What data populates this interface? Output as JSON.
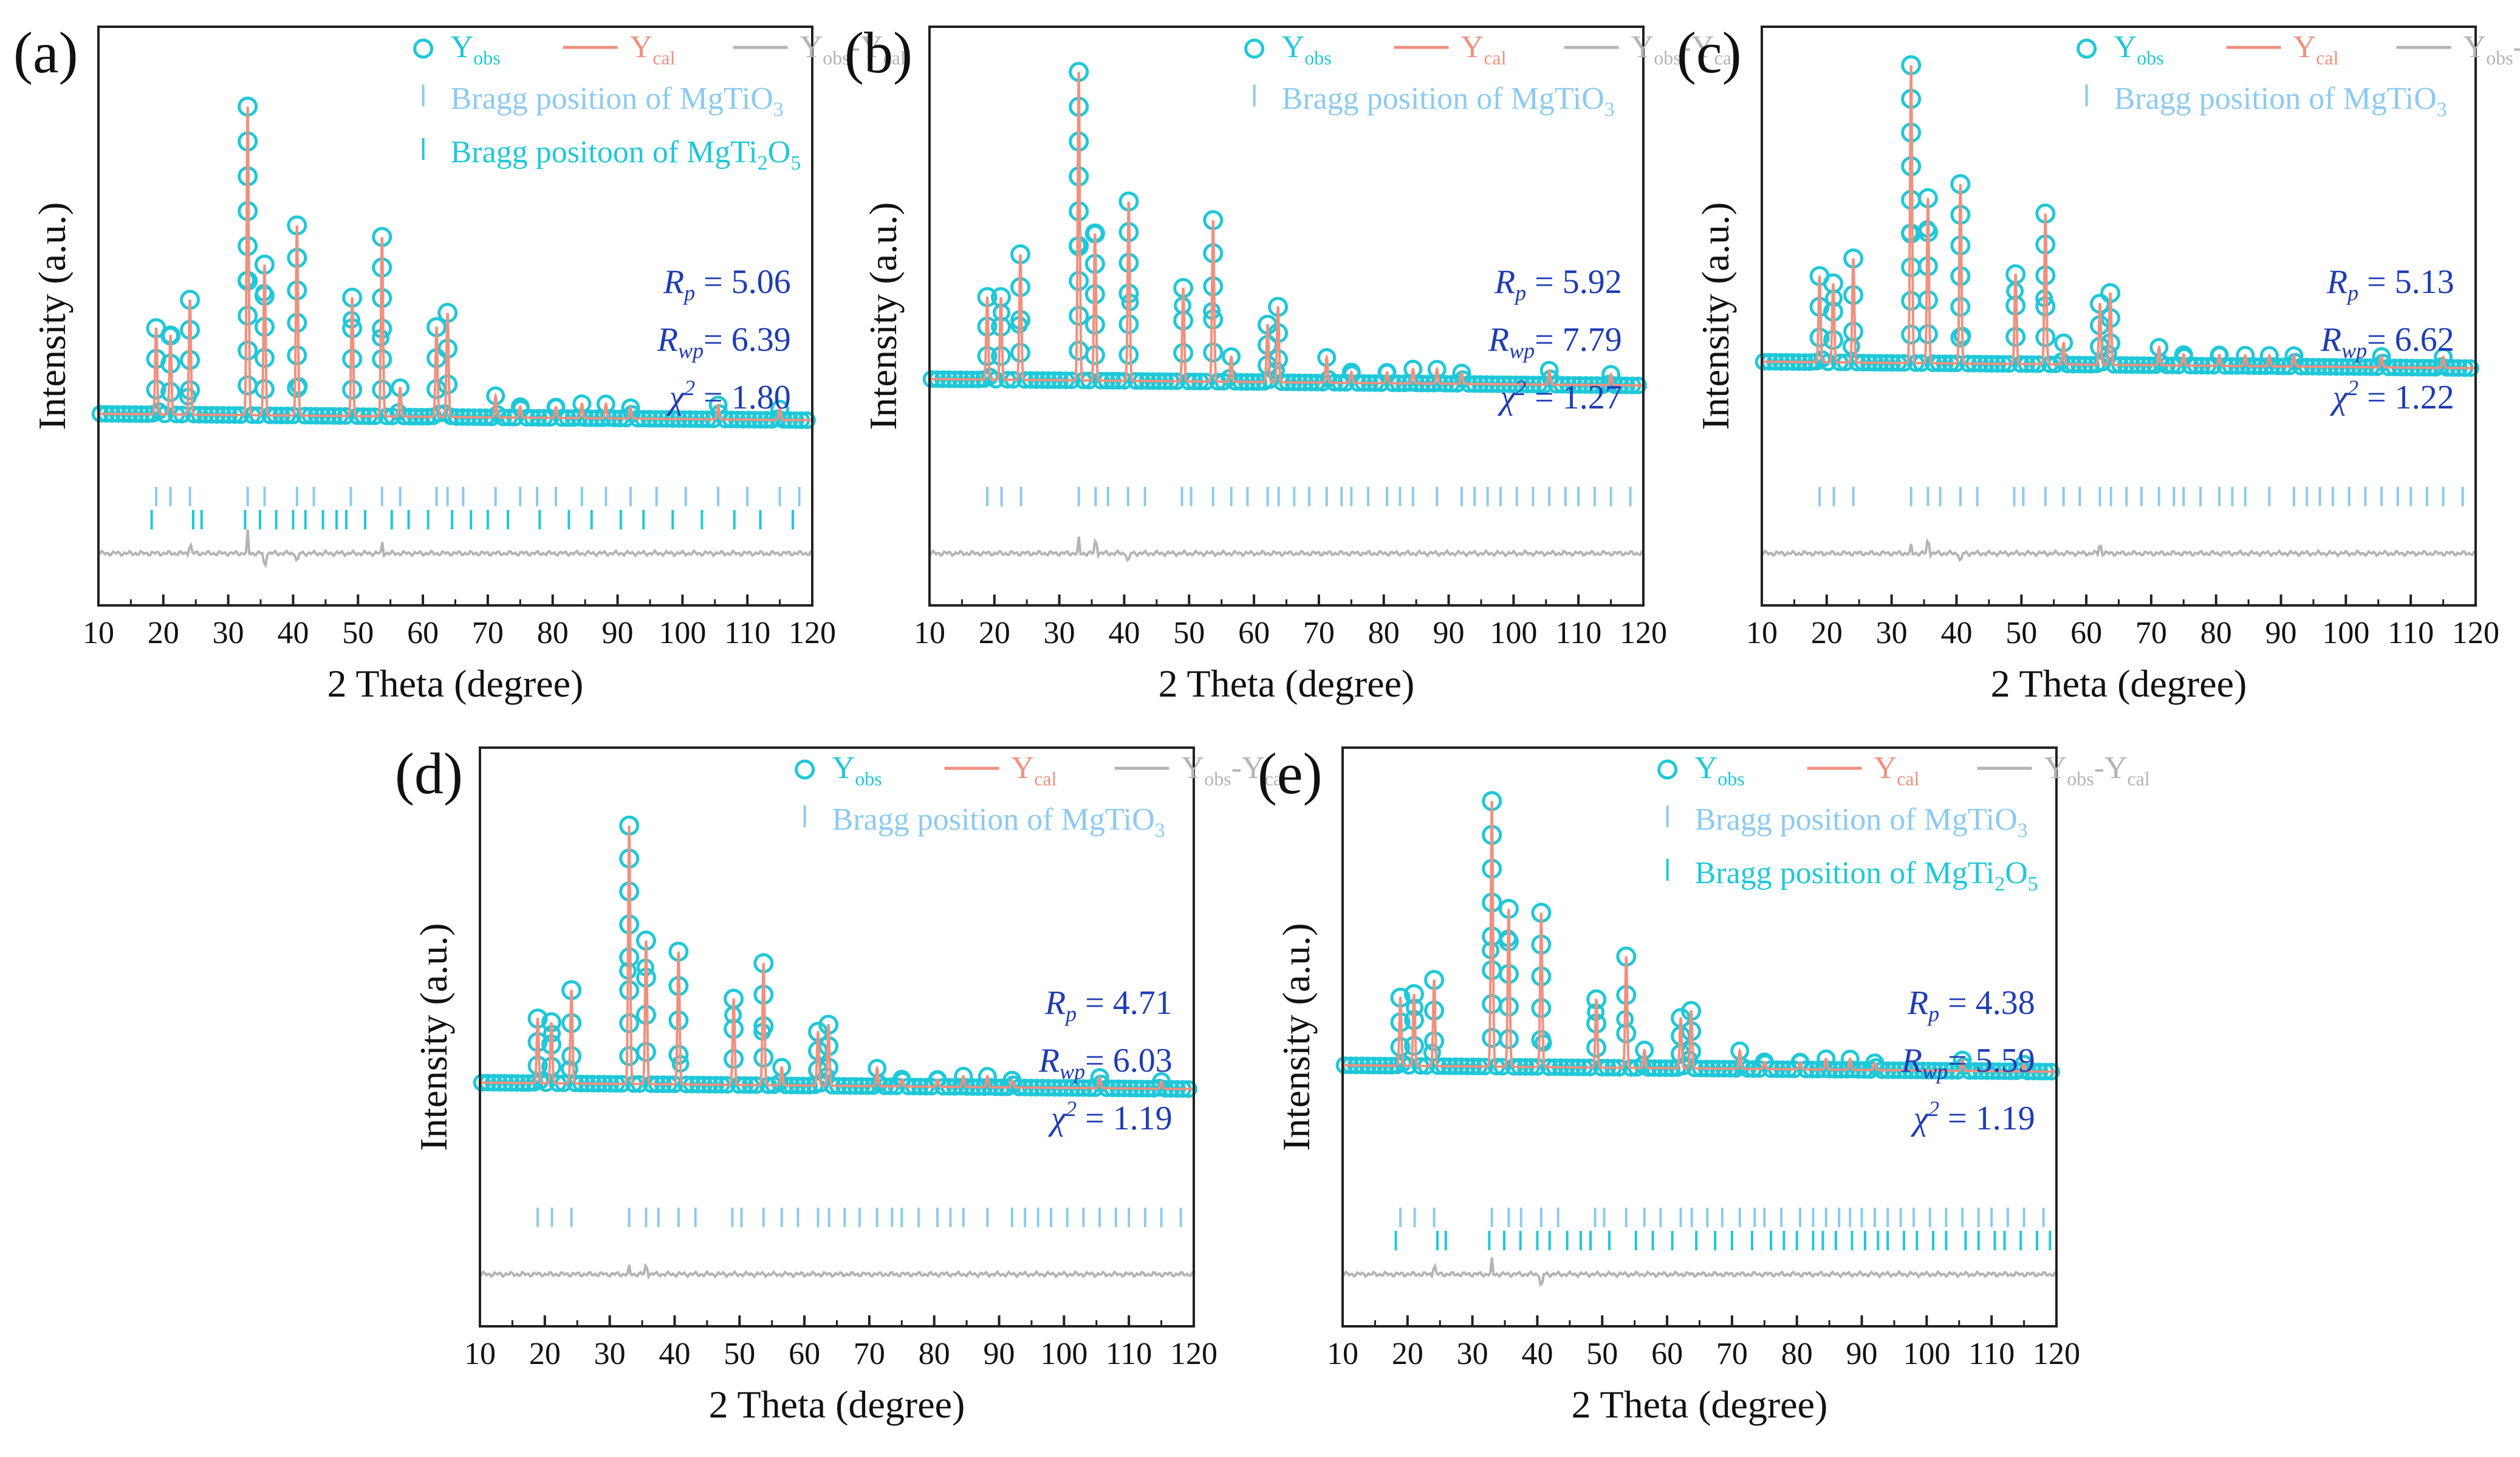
{
  "colors": {
    "obs": "#1fc8d8",
    "cal": "#f0907e",
    "diff": "#b4b4b4",
    "bragg1": "#8ccaf0",
    "bragg2": "#1fc8d8",
    "stats": "#1e3cb4",
    "axis": "#222222"
  },
  "chart_data": [
    {
      "type": "line",
      "panel": "(a)",
      "xlabel": "2 Theta (degree)",
      "ylabel": "Intensity (a.u.)",
      "xlim": [
        10,
        120
      ],
      "xticks": [
        "10",
        "20",
        "30",
        "40",
        "50",
        "60",
        "70",
        "80",
        "90",
        "100",
        "110",
        "120"
      ],
      "legend": {
        "obs": "Y",
        "obs_sub": "obs",
        "cal": "Y",
        "cal_sub": "cal",
        "diff": "Y",
        "diff_sub": "obs",
        "diff_mid": "-Y",
        "diff_sub2": "cal"
      },
      "bragg_phases": [
        {
          "pre": "Bragg position of MgTiO",
          "sub": "3",
          "post": "",
          "sub2": "",
          "end": ""
        },
        {
          "pre": "Bragg positoon of MgTi",
          "sub": "2",
          "post": "O",
          "sub2": "5",
          "end": ""
        }
      ],
      "stats": {
        "rp": "5.06",
        "rwp": "6.39",
        "chi2": "1.80"
      },
      "baseline": 0.08,
      "peaks": [
        [
          18.9,
          0.24
        ],
        [
          21.1,
          0.22
        ],
        [
          24.1,
          0.32
        ],
        [
          33.0,
          0.86
        ],
        [
          35.6,
          0.42
        ],
        [
          40.6,
          0.53
        ],
        [
          49.1,
          0.33
        ],
        [
          53.7,
          0.5
        ],
        [
          56.5,
          0.08
        ],
        [
          62.1,
          0.25
        ],
        [
          63.8,
          0.29
        ],
        [
          71.2,
          0.06
        ],
        [
          75.0,
          0.03
        ],
        [
          80.5,
          0.03
        ],
        [
          84.5,
          0.04
        ],
        [
          88.2,
          0.04
        ],
        [
          92.0,
          0.03
        ],
        [
          105.5,
          0.04
        ],
        [
          115.0,
          0.03
        ]
      ],
      "bragg_rows": [
        [
          18.9,
          21.1,
          24.1,
          33.0,
          35.6,
          40.6,
          43.2,
          48.9,
          53.7,
          56.5,
          62.1,
          63.8,
          66.2,
          71.2,
          75.0,
          77.6,
          80.5,
          84.5,
          88.2,
          92.0,
          96.0,
          100.5,
          105.5,
          110.0,
          115.0,
          118.0
        ],
        [
          18.2,
          24.6,
          25.9,
          32.6,
          34.9,
          37.4,
          40.0,
          41.9,
          44.6,
          46.7,
          48.2,
          51.1,
          55.2,
          57.8,
          60.8,
          64.5,
          67.4,
          70.0,
          73.1,
          78.0,
          82.5,
          86.0,
          90.5,
          94.0,
          98.5,
          103.0,
          108.0,
          112.0,
          117.0
        ]
      ],
      "diff_spikes": [
        [
          33.0,
          0.06
        ],
        [
          35.6,
          -0.03
        ],
        [
          53.7,
          0.03
        ],
        [
          24.1,
          0.02
        ],
        [
          40.6,
          -0.02
        ]
      ]
    },
    {
      "type": "line",
      "panel": "(b)",
      "xlabel": "2 Theta (degree)",
      "ylabel": "Intensity (a.u.)",
      "xlim": [
        10,
        120
      ],
      "xticks": [
        "10",
        "20",
        "30",
        "40",
        "50",
        "60",
        "70",
        "80",
        "90",
        "100",
        "110",
        "120"
      ],
      "legend": {
        "obs": "Y",
        "obs_sub": "obs",
        "cal": "Y",
        "cal_sub": "cal",
        "diff": "Y",
        "diff_sub": "obs",
        "diff_mid": "-Y",
        "diff_sub2": "cal"
      },
      "bragg_phases": [
        {
          "pre": "Bragg position of MgTiO",
          "sub": "3",
          "post": "",
          "sub2": "",
          "end": ""
        }
      ],
      "stats": {
        "rp": "5.92",
        "rwp": "7.79",
        "chi2": "1.27"
      },
      "baseline": 0.14,
      "peaks": [
        [
          18.9,
          0.23
        ],
        [
          21.0,
          0.23
        ],
        [
          24.0,
          0.35
        ],
        [
          33.0,
          0.86
        ],
        [
          35.5,
          0.41
        ],
        [
          40.7,
          0.5
        ],
        [
          49.1,
          0.26
        ],
        [
          53.7,
          0.45
        ],
        [
          56.5,
          0.07
        ],
        [
          62.1,
          0.16
        ],
        [
          63.7,
          0.21
        ],
        [
          71.2,
          0.07
        ],
        [
          75.0,
          0.03
        ],
        [
          80.5,
          0.03
        ],
        [
          84.5,
          0.04
        ],
        [
          88.2,
          0.04
        ],
        [
          92.0,
          0.03
        ],
        [
          105.5,
          0.04
        ],
        [
          115.0,
          0.03
        ]
      ],
      "bragg_rows": [
        [
          18.9,
          21.1,
          24.1,
          33.0,
          35.6,
          37.5,
          40.6,
          43.2,
          48.9,
          50.3,
          53.7,
          56.5,
          59.0,
          62.1,
          63.8,
          66.2,
          68.5,
          71.2,
          73.5,
          75.0,
          77.6,
          80.5,
          82.5,
          84.5,
          88.2,
          92.0,
          94.0,
          96.0,
          98.0,
          100.5,
          103.0,
          105.5,
          108.0,
          110.0,
          112.5,
          115.0,
          118.0
        ]
      ],
      "diff_spikes": [
        [
          33.0,
          0.04
        ],
        [
          35.6,
          0.03
        ],
        [
          40.6,
          -0.02
        ]
      ]
    },
    {
      "type": "line",
      "panel": "(c)",
      "xlabel": "2 Theta (degree)",
      "ylabel": "Intensity (a.u.)",
      "xlim": [
        10,
        120
      ],
      "xticks": [
        "10",
        "20",
        "30",
        "40",
        "50",
        "60",
        "70",
        "80",
        "90",
        "100",
        "110",
        "120"
      ],
      "legend": {
        "obs": "Y",
        "obs_sub": "obs",
        "cal": "Y",
        "cal_sub": "cal",
        "diff": "Y",
        "diff_sub": "obs",
        "diff_mid": "-Y",
        "diff_sub2": "cal"
      },
      "bragg_phases": [
        {
          "pre": "Bragg position of MgTiO",
          "sub": "3",
          "post": "",
          "sub2": "",
          "end": ""
        }
      ],
      "stats": {
        "rp": "5.13",
        "rwp": "6.62",
        "chi2": "1.22"
      },
      "baseline": 0.17,
      "peaks": [
        [
          18.9,
          0.24
        ],
        [
          21.0,
          0.22
        ],
        [
          24.1,
          0.29
        ],
        [
          33.0,
          0.83
        ],
        [
          35.6,
          0.46
        ],
        [
          40.6,
          0.5
        ],
        [
          49.1,
          0.25
        ],
        [
          53.7,
          0.42
        ],
        [
          56.5,
          0.06
        ],
        [
          62.1,
          0.17
        ],
        [
          63.7,
          0.2
        ],
        [
          71.2,
          0.05
        ],
        [
          75.0,
          0.03
        ],
        [
          80.5,
          0.03
        ],
        [
          84.5,
          0.03
        ],
        [
          88.2,
          0.03
        ],
        [
          92.0,
          0.03
        ],
        [
          105.5,
          0.03
        ],
        [
          115.0,
          0.03
        ]
      ],
      "bragg_rows": [
        [
          18.9,
          21.1,
          24.1,
          33.0,
          35.6,
          37.5,
          40.6,
          43.2,
          48.9,
          50.3,
          53.7,
          56.5,
          59.0,
          62.1,
          63.8,
          66.2,
          68.5,
          71.2,
          73.5,
          75.0,
          77.6,
          80.5,
          82.5,
          84.5,
          88.2,
          92.0,
          94.0,
          96.0,
          98.0,
          100.5,
          103.0,
          105.5,
          108.0,
          110.0,
          112.5,
          115.0,
          118.0
        ]
      ],
      "diff_spikes": [
        [
          35.6,
          0.03
        ],
        [
          33.0,
          0.02
        ],
        [
          40.6,
          -0.02
        ],
        [
          62.1,
          0.02
        ]
      ]
    },
    {
      "type": "line",
      "panel": "(d)",
      "xlabel": "2 Theta (degree)",
      "ylabel": "Intensity (a.u.)",
      "xlim": [
        10,
        120
      ],
      "xticks": [
        "10",
        "20",
        "30",
        "40",
        "50",
        "60",
        "70",
        "80",
        "90",
        "100",
        "110",
        "120"
      ],
      "legend": {
        "obs": "Y",
        "obs_sub": "obs",
        "cal": "Y",
        "cal_sub": "cal",
        "diff": "Y",
        "diff_sub": "obs",
        "diff_mid": "-Y",
        "diff_sub2": "cal"
      },
      "bragg_phases": [
        {
          "pre": "Bragg position of MgTiO",
          "sub": "3",
          "post": "",
          "sub2": "",
          "end": ""
        }
      ],
      "stats": {
        "rp": "4.71",
        "rwp": "6.03",
        "chi2": "1.19"
      },
      "baseline": 0.17,
      "peaks": [
        [
          18.9,
          0.18
        ],
        [
          21.0,
          0.17
        ],
        [
          24.1,
          0.26
        ],
        [
          33.0,
          0.72
        ],
        [
          35.6,
          0.4
        ],
        [
          40.6,
          0.37
        ],
        [
          49.1,
          0.24
        ],
        [
          53.7,
          0.34
        ],
        [
          56.5,
          0.05
        ],
        [
          62.1,
          0.15
        ],
        [
          63.7,
          0.17
        ],
        [
          71.2,
          0.05
        ],
        [
          75.0,
          0.02
        ],
        [
          80.5,
          0.02
        ],
        [
          84.5,
          0.03
        ],
        [
          88.2,
          0.03
        ],
        [
          92.0,
          0.02
        ],
        [
          105.5,
          0.03
        ],
        [
          115.0,
          0.02
        ]
      ],
      "bragg_rows": [
        [
          18.9,
          21.1,
          24.1,
          33.0,
          35.6,
          37.5,
          40.6,
          43.2,
          48.9,
          50.3,
          53.7,
          56.5,
          59.0,
          62.1,
          63.8,
          66.2,
          68.5,
          71.2,
          73.5,
          75.0,
          77.6,
          80.5,
          82.5,
          84.5,
          88.2,
          92.0,
          94.0,
          96.0,
          98.0,
          100.5,
          103.0,
          105.5,
          108.0,
          110.0,
          112.5,
          115.0,
          118.0
        ]
      ],
      "diff_spikes": [
        [
          35.6,
          0.02
        ],
        [
          33.0,
          0.02
        ]
      ]
    },
    {
      "type": "line",
      "panel": "(e)",
      "xlabel": "2 Theta (degree)",
      "ylabel": "Intensity (a.u.)",
      "xlim": [
        10,
        120
      ],
      "xticks": [
        "10",
        "20",
        "30",
        "40",
        "50",
        "60",
        "70",
        "80",
        "90",
        "100",
        "110",
        "120"
      ],
      "legend": {
        "obs": "Y",
        "obs_sub": "obs",
        "cal": "Y",
        "cal_sub": "cal",
        "diff": "Y",
        "diff_sub": "obs",
        "diff_mid": "-Y",
        "diff_sub2": "cal"
      },
      "bragg_phases": [
        {
          "pre": "Bragg position of MgTiO",
          "sub": "3",
          "post": "",
          "sub2": "",
          "end": ""
        },
        {
          "pre": "Bragg position of MgTi",
          "sub": "2",
          "post": "O",
          "sub2": "5",
          "end": ""
        }
      ],
      "stats": {
        "rp": "4.38",
        "rwp": "5.59",
        "chi2": "1.19"
      },
      "baseline": 0.2,
      "peaks": [
        [
          18.9,
          0.19
        ],
        [
          21.0,
          0.2
        ],
        [
          24.1,
          0.24
        ],
        [
          33.0,
          0.74
        ],
        [
          35.6,
          0.44
        ],
        [
          40.6,
          0.43
        ],
        [
          49.1,
          0.19
        ],
        [
          53.7,
          0.31
        ],
        [
          56.5,
          0.05
        ],
        [
          62.1,
          0.14
        ],
        [
          63.7,
          0.16
        ],
        [
          71.2,
          0.05
        ],
        [
          75.0,
          0.02
        ],
        [
          80.5,
          0.02
        ],
        [
          84.5,
          0.03
        ],
        [
          88.2,
          0.03
        ],
        [
          92.0,
          0.02
        ],
        [
          105.5,
          0.03
        ],
        [
          115.0,
          0.02
        ]
      ],
      "bragg_rows": [
        [
          18.9,
          21.1,
          24.1,
          33.0,
          35.6,
          37.5,
          40.6,
          43.2,
          48.9,
          50.3,
          53.7,
          56.5,
          59.0,
          62.1,
          63.8,
          66.2,
          68.5,
          71.2,
          73.5,
          75.0,
          77.6,
          80.5,
          82.5,
          84.5,
          86.5,
          88.2,
          90.0,
          92.0,
          94.0,
          96.0,
          98.0,
          100.5,
          103.0,
          105.5,
          108.0,
          110.0,
          112.5,
          115.0,
          118.0
        ],
        [
          18.2,
          24.6,
          25.9,
          32.6,
          34.9,
          37.4,
          40.0,
          41.9,
          44.6,
          46.7,
          48.2,
          51.1,
          55.2,
          57.8,
          60.8,
          64.5,
          67.4,
          70.0,
          73.1,
          76.0,
          78.0,
          80.0,
          82.5,
          84.0,
          86.0,
          88.5,
          90.5,
          92.5,
          94.0,
          96.5,
          98.5,
          101.0,
          103.0,
          106.0,
          108.0,
          110.5,
          112.0,
          114.5,
          117.0,
          119.0
        ]
      ],
      "diff_spikes": [
        [
          33.0,
          0.04
        ],
        [
          40.6,
          -0.03
        ],
        [
          24.1,
          0.02
        ]
      ]
    }
  ]
}
